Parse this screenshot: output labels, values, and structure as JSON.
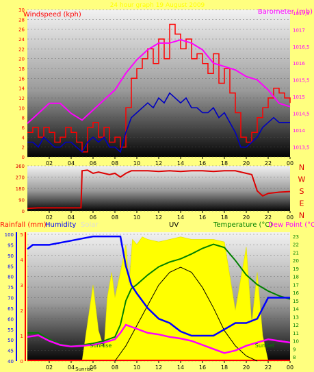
{
  "colors": {
    "background": "#ffff7f",
    "windspeed": "#ff0000",
    "gust": "#ff0000",
    "avg_wind": "#0000c0",
    "barometer": "#ff00ff",
    "direction": "#dd0000",
    "direction_letters": "#dd0000",
    "rainfall": "#ff0000",
    "humidity": "#0000ff",
    "solar": "#ffff00",
    "uv": "#000000",
    "temperature": "#008000",
    "dewpoint": "#ff00ff"
  },
  "chart_data": [
    {
      "type": "line",
      "panel": "wind-baro",
      "title": "24 hour graph 19 August 2009",
      "ylabel_left": "Windspeed (kph)",
      "ylabel_right": "Barometer (mb)",
      "ylim_left": [
        0,
        30
      ],
      "ylim_right": [
        1013.2,
        1017.6
      ],
      "y_ticks_left": [
        "0",
        "2",
        "4",
        "6",
        "8",
        "10",
        "12",
        "14",
        "16",
        "18",
        "20",
        "22",
        "24",
        "26",
        "28",
        "30"
      ],
      "y_ticks_right": [
        "1013,5",
        "1014",
        "1014,5",
        "1015",
        "1015,5",
        "1016",
        "1016,5",
        "1017",
        "1017,5"
      ],
      "x_ticks": [
        "02",
        "04",
        "06",
        "08",
        "10",
        "12",
        "14",
        "16",
        "18",
        "20",
        "22",
        "00"
      ],
      "xlim": [
        0,
        24
      ],
      "series": [
        {
          "key": "gust",
          "x": [
            0,
            0.5,
            1,
            1.5,
            2,
            2.5,
            3,
            3.5,
            4,
            4.5,
            5,
            5.5,
            6,
            6.5,
            7,
            7.5,
            8,
            8.5,
            9,
            9.5,
            10,
            10.5,
            11,
            11.5,
            12,
            12.5,
            13,
            13.5,
            14,
            14.5,
            15,
            15.5,
            16,
            16.5,
            17,
            17.5,
            18,
            18.5,
            19,
            19.5,
            20,
            20.5,
            21,
            21.5,
            22,
            22.5,
            23,
            23.5,
            24
          ],
          "values": [
            5,
            6,
            4,
            6,
            5,
            3,
            4,
            6,
            5,
            3,
            1,
            6,
            7,
            4,
            6,
            3,
            4,
            2,
            10,
            16,
            18,
            20,
            22,
            19,
            24,
            20,
            27,
            25,
            22,
            24,
            20,
            21,
            19,
            17,
            21,
            15,
            18,
            13,
            9,
            4,
            3,
            5,
            8,
            10,
            12,
            14,
            13,
            12,
            11
          ]
        },
        {
          "key": "avg_wind",
          "x": [
            0,
            0.5,
            1,
            1.5,
            2,
            2.5,
            3,
            3.5,
            4,
            4.5,
            5,
            5.5,
            6,
            6.5,
            7,
            7.5,
            8,
            8.5,
            9,
            9.5,
            10,
            10.5,
            11,
            11.5,
            12,
            12.5,
            13,
            13.5,
            14,
            14.5,
            15,
            15.5,
            16,
            16.5,
            17,
            17.5,
            18,
            18.5,
            19,
            19.5,
            20,
            20.5,
            21,
            21.5,
            22,
            22.5,
            23,
            23.5,
            24
          ],
          "values": [
            3,
            3,
            2,
            4,
            3,
            2,
            2,
            3,
            3,
            2,
            1,
            3,
            4,
            3,
            4,
            2,
            2,
            1,
            5,
            8,
            9,
            10,
            11,
            10,
            12,
            11,
            13,
            12,
            11,
            12,
            10,
            10,
            9,
            9,
            10,
            8,
            9,
            7,
            5,
            2,
            2,
            3,
            4,
            6,
            7,
            8,
            7,
            7,
            7
          ]
        },
        {
          "key": "barometer",
          "x": [
            0,
            1,
            2,
            3,
            4,
            5,
            6,
            7,
            8,
            9,
            10,
            11,
            12,
            13,
            14,
            15,
            16,
            17,
            18,
            19,
            20,
            21,
            22,
            23,
            24
          ],
          "values": [
            1014.2,
            1014.5,
            1014.8,
            1014.8,
            1014.5,
            1014.3,
            1014.6,
            1014.9,
            1015.2,
            1015.7,
            1016.1,
            1016.4,
            1016.6,
            1016.6,
            1016.7,
            1016.6,
            1016.4,
            1016.0,
            1015.9,
            1015.8,
            1015.6,
            1015.5,
            1015.2,
            1014.8,
            1014.7
          ]
        }
      ]
    },
    {
      "type": "line",
      "panel": "direction",
      "ylabel_right": [
        "N",
        "W",
        "S",
        "E",
        "N"
      ],
      "ylim": [
        0,
        360
      ],
      "y_ticks": [
        "0",
        "90",
        "180",
        "270",
        "360"
      ],
      "x_ticks": [
        "02",
        "04",
        "06",
        "08",
        "10",
        "12",
        "14",
        "16",
        "18",
        "20",
        "22",
        "00"
      ],
      "xlim": [
        0,
        24
      ],
      "series": [
        {
          "key": "direction",
          "x": [
            0,
            1,
            2,
            3,
            4,
            4.9,
            5,
            5.5,
            6,
            6.5,
            7,
            7.5,
            8,
            8.5,
            9,
            9.5,
            10,
            11,
            12,
            13,
            14,
            15,
            16,
            17,
            18,
            19,
            20,
            20.5,
            21,
            21.5,
            22,
            23,
            24
          ],
          "values": [
            20,
            25,
            25,
            25,
            25,
            25,
            320,
            325,
            300,
            310,
            300,
            290,
            300,
            270,
            300,
            320,
            320,
            320,
            315,
            320,
            315,
            320,
            320,
            315,
            320,
            320,
            300,
            290,
            160,
            120,
            140,
            150,
            155
          ]
        }
      ]
    },
    {
      "type": "line",
      "panel": "rain-hum-temp",
      "labels_top": [
        "Rainfall (mm)",
        "Humidity",
        "Solar",
        "UV",
        "Temperature (°C)",
        "Dew Point (°C)"
      ],
      "ylim_rain": [
        0,
        5
      ],
      "y_ticks_rain": [
        "0",
        "1",
        "2",
        "3",
        "4",
        "5"
      ],
      "ylim_humidity": [
        40,
        100
      ],
      "y_ticks_humidity": [
        "40",
        "45",
        "50",
        "55",
        "60",
        "65",
        "70",
        "75",
        "80",
        "85",
        "90",
        "95",
        "100"
      ],
      "ylim_temperature": [
        7.5,
        23.5
      ],
      "y_ticks_temperature": [
        "8",
        "9",
        "10",
        "11",
        "12",
        "13",
        "14",
        "15",
        "16",
        "17",
        "18",
        "19",
        "20",
        "21",
        "22",
        "23"
      ],
      "x_ticks": [
        "02",
        "04",
        "06",
        "08",
        "10",
        "12",
        "14",
        "16",
        "18",
        "20",
        "22",
        "00"
      ],
      "xlim": [
        0,
        24
      ],
      "annotations": {
        "sunrise": "SunRise",
        "sunset": "SunSet",
        "sunrise_axis": "Sunrise"
      },
      "series": [
        {
          "key": "humidity",
          "x": [
            0,
            0.5,
            1,
            2,
            3,
            4,
            5,
            6,
            7,
            8,
            8.5,
            9,
            9.5,
            10,
            11,
            12,
            13,
            14,
            15,
            16,
            17,
            18,
            19,
            20,
            21,
            21.5,
            22,
            23,
            24
          ],
          "values": [
            93,
            95,
            95,
            95,
            96,
            97,
            98,
            99,
            99,
            99,
            99,
            85,
            76,
            72,
            65,
            60,
            58,
            54,
            52,
            52,
            52,
            55,
            58,
            58,
            60,
            65,
            70,
            70,
            70
          ]
        },
        {
          "key": "temperature",
          "x": [
            0,
            1,
            2,
            3,
            4,
            5,
            6,
            7,
            8,
            8.5,
            9,
            9.5,
            10,
            11,
            12,
            13,
            14,
            15,
            16,
            17,
            18,
            19,
            20,
            21,
            22,
            23,
            24
          ],
          "values": [
            11,
            11,
            10.2,
            9.6,
            9.4,
            9.5,
            9.7,
            10,
            10.5,
            12,
            15,
            16.5,
            17,
            18.2,
            19.2,
            19.8,
            20.2,
            20.8,
            21.5,
            22,
            21.6,
            20,
            18.2,
            17,
            16.2,
            15.6,
            15.2
          ]
        },
        {
          "key": "dewpoint",
          "x": [
            0,
            1,
            2,
            3,
            4,
            5,
            6,
            7,
            8,
            8.5,
            9,
            10,
            11,
            12,
            13,
            14,
            15,
            16,
            17,
            18,
            19,
            20,
            21,
            22,
            23,
            24
          ],
          "values": [
            10.5,
            10.7,
            10,
            9.5,
            9.3,
            9.4,
            9.5,
            9.8,
            10.2,
            11,
            12,
            11.5,
            11,
            10.8,
            10.5,
            10.3,
            10,
            9.5,
            9,
            8.5,
            8.8,
            9.4,
            9.8,
            10.2,
            10,
            9.8
          ]
        },
        {
          "key": "uv",
          "x": [
            8,
            9,
            10,
            11,
            12,
            13,
            14,
            15,
            16,
            17,
            18,
            19,
            20,
            21
          ],
          "values": [
            0,
            0.6,
            1.4,
            2.2,
            3,
            3.5,
            3.7,
            3.5,
            2.9,
            2.1,
            1.2,
            0.6,
            0.2,
            0
          ]
        },
        {
          "key": "solar",
          "x": [
            0,
            5,
            5.5,
            6,
            6.5,
            7,
            7.3,
            7.7,
            8,
            8.5,
            9,
            9.3,
            9.6,
            10,
            10.5,
            11,
            12,
            13,
            14,
            15,
            16,
            17,
            18,
            19,
            20,
            20.5,
            21,
            21.5,
            22,
            24
          ],
          "values": [
            0,
            0,
            1.5,
            3,
            1.2,
            0.5,
            2.5,
            3.5,
            2.5,
            3.5,
            4.6,
            3,
            4.8,
            4.6,
            4.9,
            4.8,
            4.7,
            4.8,
            4.9,
            4.8,
            4.8,
            4.8,
            4.7,
            2,
            4.5,
            1.5,
            3.5,
            1,
            0,
            0
          ]
        }
      ]
    }
  ]
}
